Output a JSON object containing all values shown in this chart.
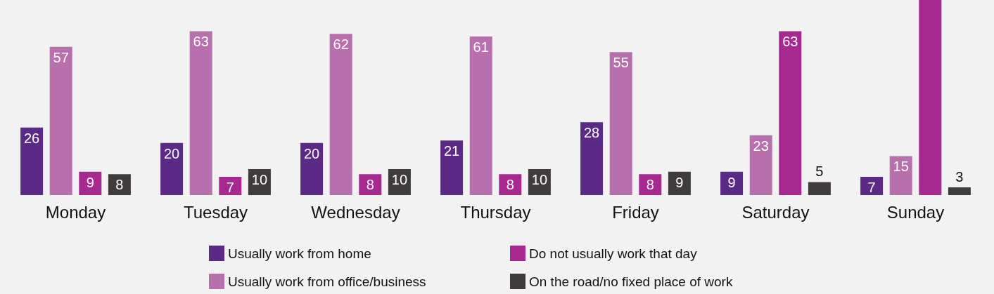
{
  "chart_data": {
    "type": "bar",
    "categories": [
      "Monday",
      "Tuesday",
      "Wednesday",
      "Thursday",
      "Friday",
      "Saturday",
      "Sunday"
    ],
    "series": [
      {
        "name": "Usually work from home",
        "color": "#5b2a86",
        "values": [
          26,
          20,
          20,
          21,
          28,
          9,
          7
        ]
      },
      {
        "name": "Usually work from office/business",
        "color": "#b86fae",
        "values": [
          57,
          63,
          62,
          61,
          55,
          23,
          15
        ]
      },
      {
        "name": "Do not usually work that day",
        "color": "#a7298f",
        "values": [
          9,
          7,
          8,
          8,
          8,
          63,
          75
        ],
        "value_labels": [
          "9",
          "7",
          "8",
          "8",
          "8",
          "63",
          null
        ]
      },
      {
        "name": "On the road/no fixed place of work",
        "color": "#403c3c",
        "values": [
          8,
          10,
          10,
          10,
          9,
          5,
          3
        ]
      }
    ],
    "data_labels": true,
    "legend": "bottom"
  }
}
